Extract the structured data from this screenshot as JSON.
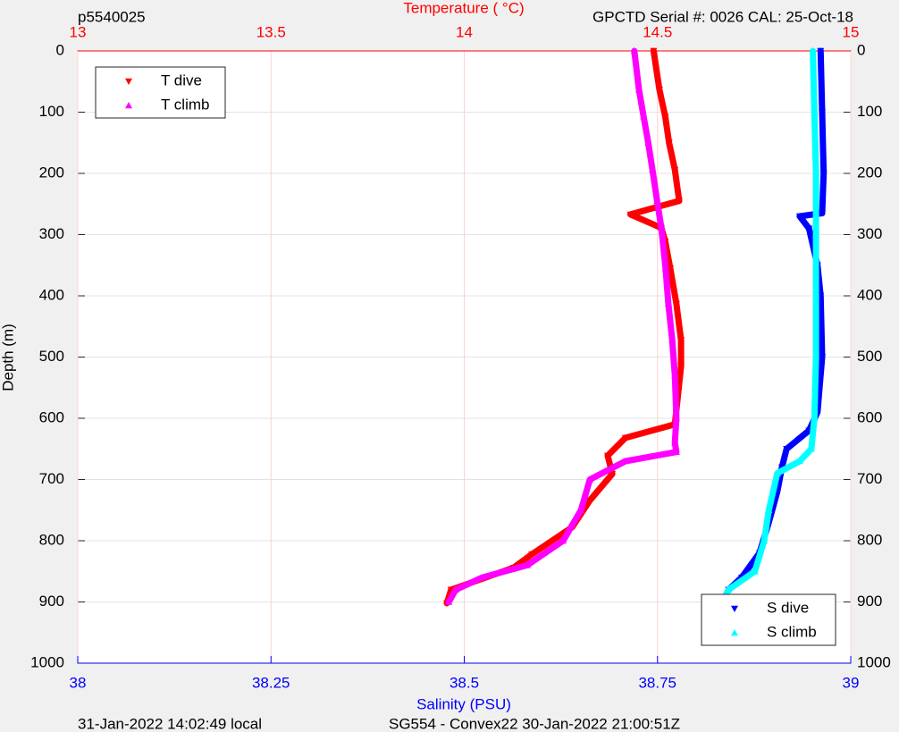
{
  "chart_data": {
    "type": "scatter",
    "title_left": "p5540025",
    "title_right": "GPCTD Serial #: 0026 CAL: 25-Oct-18",
    "xlabel": "Salinity (PSU)",
    "x2label": "Temperature (    °C)",
    "ylabel": "Depth (m)",
    "footer_left": "31-Jan-2022 14:02:49 local",
    "footer_right": "SG554 - Convex22 30-Jan-2022 21:00:51Z",
    "xlim": [
      38,
      39
    ],
    "xticks": [
      38,
      38.25,
      38.5,
      38.75,
      39
    ],
    "xcolor": "#0000ff",
    "x2lim": [
      13,
      15
    ],
    "x2ticks": [
      13,
      13.5,
      14,
      14.5,
      15
    ],
    "x2color": "#ff0000",
    "ylim": [
      0,
      1000
    ],
    "yticks": [
      0,
      100,
      200,
      300,
      400,
      500,
      600,
      700,
      800,
      900,
      1000
    ],
    "y_reversed": true,
    "grid": true,
    "series": [
      {
        "name": "T dive",
        "color": "#ff0000",
        "marker": "down",
        "axis": "x2",
        "legend_loc": "upper left",
        "x": [
          14.49,
          14.505,
          14.52,
          14.53,
          14.545,
          14.556,
          14.43,
          14.51,
          14.52,
          14.533,
          14.549,
          14.561,
          14.561,
          14.551,
          14.545,
          14.417,
          14.371,
          14.383,
          14.325,
          14.279,
          14.175,
          14.128,
          13.966,
          13.955
        ],
        "values": [
          0,
          63,
          107,
          150,
          194,
          245,
          267,
          289,
          311,
          355,
          413,
          472,
          515,
          574,
          610,
          632,
          661,
          691,
          734,
          778,
          822,
          844,
          880,
          902
        ]
      },
      {
        "name": "T climb",
        "color": "#ff00ff",
        "marker": "up",
        "axis": "x2",
        "legend_loc": "upper left",
        "x": [
          14.44,
          14.452,
          14.464,
          14.476,
          14.487,
          14.499,
          14.51,
          14.521,
          14.528,
          14.538,
          14.545,
          14.549,
          14.545,
          14.549,
          14.417,
          14.325,
          14.302,
          14.256,
          14.163,
          14.047,
          13.978,
          13.96
        ],
        "values": [
          0,
          63,
          107,
          150,
          194,
          245,
          289,
          355,
          413,
          472,
          530,
          600,
          640,
          655,
          670,
          700,
          750,
          800,
          840,
          860,
          880,
          900
        ]
      },
      {
        "name": "S dive",
        "color": "#0000ff",
        "marker": "down",
        "legend_loc": "lower right",
        "x": [
          38.961,
          38.963,
          38.965,
          38.963,
          38.934,
          38.946,
          38.957,
          38.961,
          38.963,
          38.957,
          38.946,
          38.917,
          38.911,
          38.905,
          38.894,
          38.882,
          38.859,
          38.842,
          38.834
        ],
        "values": [
          0,
          100,
          200,
          265,
          270,
          290,
          350,
          400,
          500,
          590,
          620,
          650,
          680,
          720,
          770,
          820,
          860,
          880,
          900
        ]
      },
      {
        "name": "S climb",
        "color": "#00ffff",
        "marker": "up",
        "legend_loc": "lower right",
        "x": [
          38.951,
          38.953,
          38.955,
          38.955,
          38.955,
          38.955,
          38.953,
          38.949,
          38.934,
          38.905,
          38.894,
          38.888,
          38.876,
          38.842,
          38.834
        ],
        "values": [
          0,
          100,
          200,
          300,
          400,
          500,
          600,
          650,
          670,
          690,
          750,
          800,
          850,
          880,
          900
        ]
      }
    ]
  }
}
